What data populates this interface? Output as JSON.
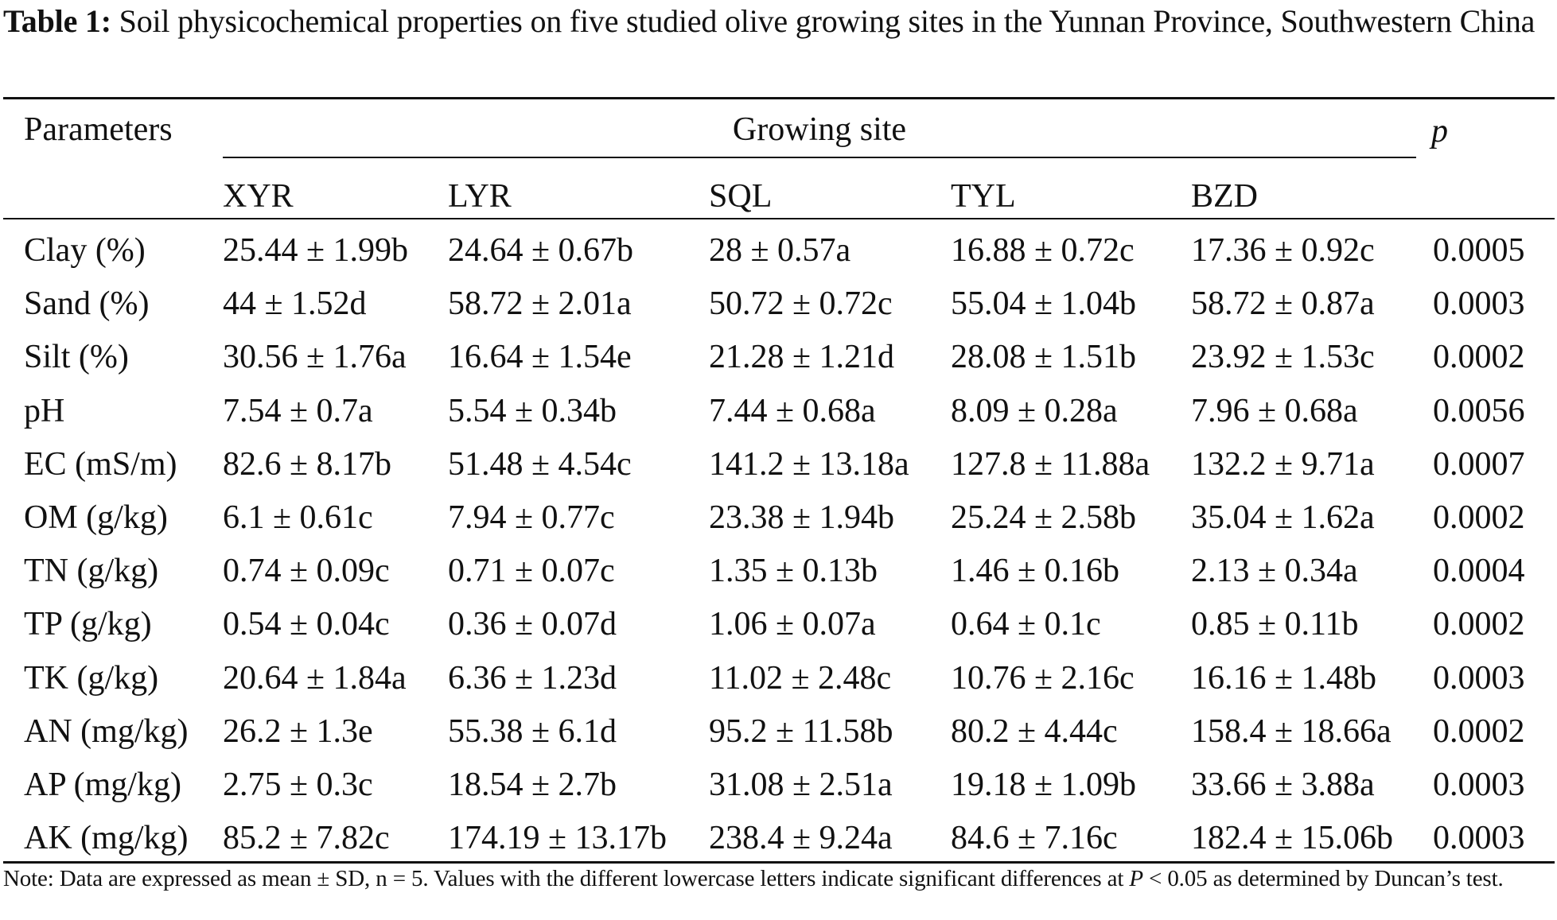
{
  "caption": {
    "label": "Table 1:",
    "text": "Soil physicochemical properties on five studied olive growing sites in the Yunnan Province, Southwestern China"
  },
  "table": {
    "param_header": "Parameters",
    "group_header": "Growing site",
    "p_header": "p",
    "sites": [
      "XYR",
      "LYR",
      "SQL",
      "TYL",
      "BZD"
    ],
    "rows": [
      {
        "param": "Clay (%)",
        "values": [
          "25.44 ± 1.99b",
          "24.64 ± 0.67b",
          "28 ± 0.57a",
          "16.88 ± 0.72c",
          "17.36 ± 0.92c"
        ],
        "p": "0.0005"
      },
      {
        "param": "Sand (%)",
        "values": [
          "44 ± 1.52d",
          "58.72 ± 2.01a",
          "50.72 ± 0.72c",
          "55.04 ± 1.04b",
          "58.72 ± 0.87a"
        ],
        "p": "0.0003"
      },
      {
        "param": "Silt (%)",
        "values": [
          "30.56 ± 1.76a",
          "16.64 ± 1.54e",
          "21.28 ± 1.21d",
          "28.08 ± 1.51b",
          "23.92 ± 1.53c"
        ],
        "p": "0.0002"
      },
      {
        "param": "pH",
        "values": [
          "7.54 ± 0.7a",
          "5.54 ± 0.34b",
          "7.44 ± 0.68a",
          "8.09 ± 0.28a",
          "7.96 ± 0.68a"
        ],
        "p": "0.0056"
      },
      {
        "param": "EC (mS/m)",
        "values": [
          "82.6 ± 8.17b",
          "51.48 ± 4.54c",
          "141.2 ± 13.18a",
          "127.8 ± 11.88a",
          "132.2 ± 9.71a"
        ],
        "p": "0.0007"
      },
      {
        "param": "OM (g/kg)",
        "values": [
          "6.1 ± 0.61c",
          "7.94 ± 0.77c",
          "23.38 ± 1.94b",
          "25.24 ± 2.58b",
          "35.04 ± 1.62a"
        ],
        "p": "0.0002"
      },
      {
        "param": "TN (g/kg)",
        "values": [
          "0.74 ± 0.09c",
          "0.71 ± 0.07c",
          "1.35 ± 0.13b",
          "1.46 ± 0.16b",
          "2.13 ± 0.34a"
        ],
        "p": "0.0004"
      },
      {
        "param": "TP (g/kg)",
        "values": [
          "0.54 ± 0.04c",
          "0.36 ± 0.07d",
          "1.06 ± 0.07a",
          "0.64 ± 0.1c",
          "0.85 ± 0.11b"
        ],
        "p": "0.0002"
      },
      {
        "param": "TK (g/kg)",
        "values": [
          "20.64 ± 1.84a",
          "6.36 ± 1.23d",
          "11.02 ± 2.48c",
          "10.76 ± 2.16c",
          "16.16 ± 1.48b"
        ],
        "p": "0.0003"
      },
      {
        "param": "AN (mg/kg)",
        "values": [
          "26.2 ± 1.3e",
          "55.38 ± 6.1d",
          "95.2 ± 11.58b",
          "80.2 ± 4.44c",
          "158.4 ± 18.66a"
        ],
        "p": "0.0002"
      },
      {
        "param": "AP (mg/kg)",
        "values": [
          "2.75 ± 0.3c",
          "18.54 ± 2.7b",
          "31.08 ± 2.51a",
          "19.18 ± 1.09b",
          "33.66 ± 3.88a"
        ],
        "p": "0.0003"
      },
      {
        "param": "AK (mg/kg)",
        "values": [
          "85.2 ± 7.82c",
          "174.19 ± 13.17b",
          "238.4 ± 9.24a",
          "84.6 ± 7.16c",
          "182.4 ± 15.06b"
        ],
        "p": "0.0003"
      }
    ]
  },
  "note": {
    "before": "Note: Data are expressed as mean ± SD, n = 5. Values with the different lowercase letters indicate significant differences at ",
    "italic": "P",
    "after": " < 0.05 as determined by Duncan’s test."
  }
}
